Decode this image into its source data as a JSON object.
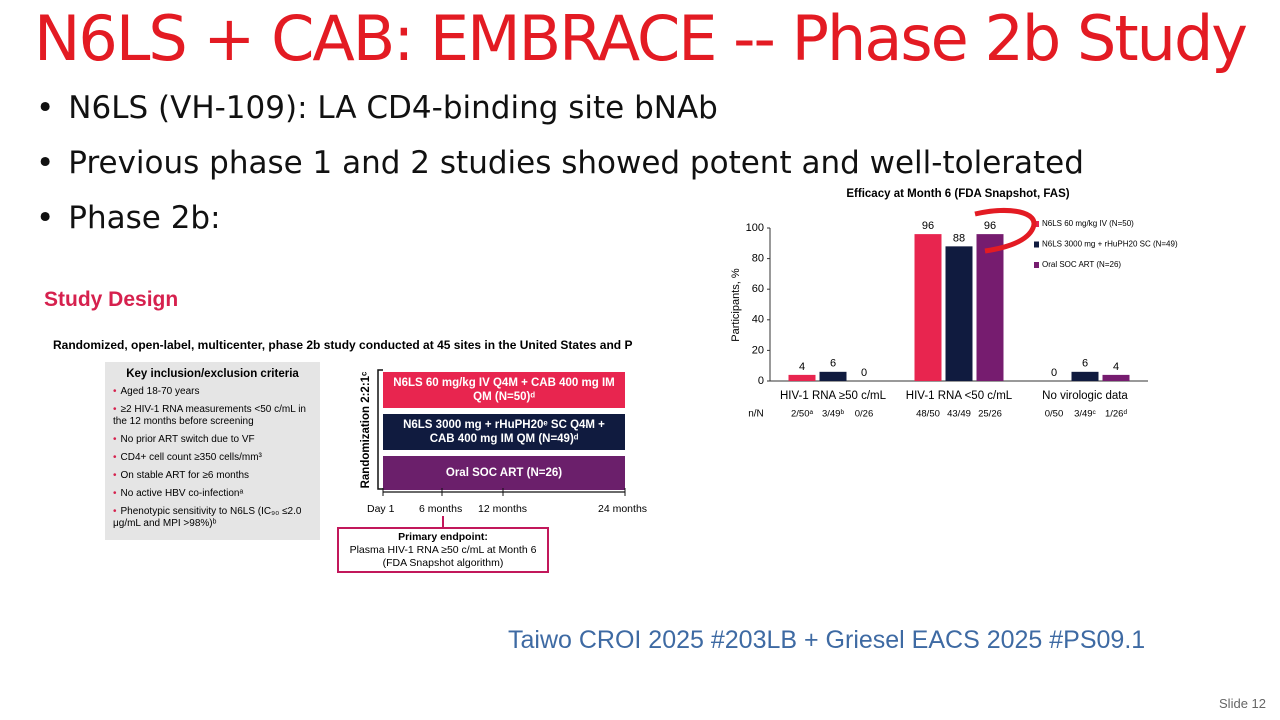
{
  "title": "N6LS + CAB:  EMBRACE -- Phase 2b Study",
  "bullets": [
    "N6LS (VH-109):  LA CD4-binding site bNAb",
    "Previous phase 1 and 2 studies showed potent and well-tolerated",
    "Phase 2b:"
  ],
  "study_design": {
    "title": "Study Design",
    "subtitle": "Randomized, open-label, multicenter, phase 2b study conducted at 45 sites in the United States and P",
    "criteria_heading": "Key inclusion/exclusion criteria",
    "criteria": [
      "Aged 18-70 years",
      "≥2 HIV-1 RNA measurements <50 c/mL in the 12 months before screening",
      "No prior ART switch due to VF",
      "CD4+ cell count ≥350 cells/mm³",
      "On stable ART for ≥6 months",
      "No active HBV co-infectionᵃ",
      "Phenotypic sensitivity to N6LS (IC₉₀ ≤2.0 μg/mL and MPI >98%)ᵇ"
    ],
    "randomization": "Randomization 2:2:1ᶜ",
    "arms": [
      "N6LS 60 mg/kg IV Q4M + CAB 400 mg IM QM (N=50)ᵈ",
      "N6LS 3000 mg + rHuPH20ᵉ SC Q4M + CAB 400 mg IM QM (N=49)ᵈ",
      "Oral SOC ART (N=26)"
    ],
    "timeline": [
      "Day 1",
      "6 months",
      "12 months",
      "24 months"
    ],
    "endpoint_heading": "Primary endpoint:",
    "endpoint_lines": [
      "Plasma HIV-1 RNA ≥50 c/mL at Month 6",
      "(FDA Snapshot algorithm)"
    ]
  },
  "chart_data": {
    "type": "bar",
    "title": "Efficacy at Month 6 (FDA Snapshot, FAS)",
    "y_label": "Participants, %",
    "categories": [
      "HIV-1 RNA ≥50 c/mL",
      "HIV-1 RNA <50 c/mL",
      "No virologic data"
    ],
    "series": [
      {
        "name": "N6LS 60 mg/kg IV (N=50)",
        "color": "#e8254f",
        "values": [
          4,
          96,
          0
        ],
        "n_of_N": [
          "2/50ᵃ",
          "48/50",
          "0/50"
        ]
      },
      {
        "name": "N6LS 3000 mg + rHuPH20 SC (N=49)",
        "color": "#101b3f",
        "values": [
          6,
          88,
          6
        ],
        "n_of_N": [
          "3/49ᵇ",
          "43/49",
          "3/49ᶜ"
        ]
      },
      {
        "name": "Oral SOC ART (N=26)",
        "color": "#761c6f",
        "values": [
          0,
          96,
          4
        ],
        "n_of_N": [
          "0/26",
          "25/26",
          "1/26ᵈ"
        ]
      }
    ],
    "n_label": "n/N",
    "ylim": [
      0,
      100
    ],
    "yticks": [
      0,
      20,
      40,
      60,
      80,
      100
    ],
    "grid": false,
    "legend": "upper right"
  },
  "citation": "Taiwo CROI 2025 #203LB + Griesel EACS 2025 #PS09.1",
  "slide_number": "Slide 12"
}
